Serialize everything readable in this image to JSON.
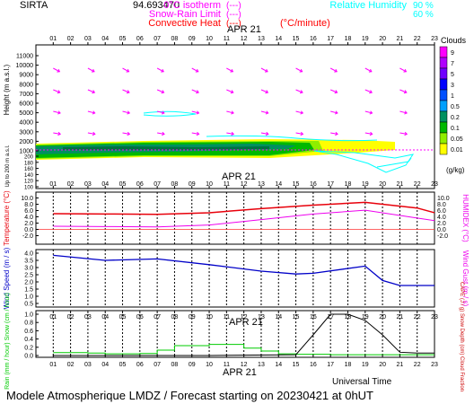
{
  "header": {
    "site": "SIRTA",
    "coords": "94.693470",
    "legend_left": [
      {
        "label": "0°C isotherm",
        "sample": "(---)",
        "color": "#ff00ff"
      },
      {
        "label": "Snow-Rain Limit",
        "sample": "(---)",
        "color": "#ff00ff"
      },
      {
        "label": "Convective Heat",
        "sample": "(---)",
        "suffix": "(°C/minute)",
        "color": "#ff0000"
      }
    ],
    "legend_right": [
      {
        "label": "Relative Humidity",
        "value": "90 %",
        "color": "#00ffff"
      },
      {
        "label": "",
        "value": "60 %",
        "color": "#00ffff"
      }
    ]
  },
  "footer": {
    "universal_time": "Universal Time",
    "model": "Modele Atmospherique LMDZ / Forecast starting on 20230421 at 0hUT"
  },
  "colors": {
    "magenta": "#ff00ff",
    "cyan": "#00ffff",
    "red": "#e8000b",
    "blue": "#0000c8",
    "green": "#00cc00",
    "black": "#000000"
  },
  "chart_data": [
    {
      "id": "clouds",
      "type": "heatmap",
      "date_label": "APR 21",
      "x_ticks": [
        "01",
        "02",
        "03",
        "04",
        "05",
        "06",
        "07",
        "08",
        "09",
        "10",
        "11",
        "12",
        "13",
        "14",
        "15",
        "16",
        "17",
        "18",
        "19",
        "20",
        "21",
        "22",
        "23"
      ],
      "ylabel": "Height (m a.s.l.)",
      "y_ticks_upper": [
        1000,
        2000,
        3000,
        4000,
        5000,
        6000,
        7000,
        8000,
        9000,
        10000,
        11000
      ],
      "ylabel_lower": "Up to 200 m a.s.l.",
      "y_ticks_lower": [
        100,
        120,
        140,
        160,
        180,
        200
      ],
      "colorbar_title": "Clouds",
      "colorbar_levels": [
        "9",
        "7",
        "5",
        "3",
        "1",
        "0.5",
        "0.2",
        "0.1",
        "0.05",
        "0.01"
      ],
      "colorbar_unit": "(g/kg)",
      "colorbar_colors": [
        "#ff00ff",
        "#b000ff",
        "#7000ff",
        "#0000ff",
        "#0050ff",
        "#00a0ff",
        "#009060",
        "#00b800",
        "#90ee00",
        "#ffff00"
      ]
    },
    {
      "id": "temperature",
      "type": "line",
      "date_label": "APR 21",
      "x_ticks": [
        "01",
        "02",
        "03",
        "04",
        "05",
        "06",
        "07",
        "08",
        "09",
        "10",
        "11",
        "12",
        "13",
        "14",
        "15",
        "16",
        "17",
        "18",
        "19",
        "20",
        "21",
        "22",
        "23"
      ],
      "ylabel": "Temperature (°C)",
      "y2label": "HUMIDEX (°C)",
      "y_ticks": [
        "10.0",
        "8.0",
        "6.0",
        "4.0",
        "2.0",
        "0.0",
        "-2.0"
      ],
      "ylim": [
        -3,
        11
      ],
      "series": [
        {
          "name": "Temperature",
          "color": "#e8000b",
          "x": [
            1,
            4,
            7,
            10,
            13,
            16,
            19,
            22,
            23
          ],
          "values": [
            5.0,
            4.9,
            4.8,
            5.3,
            6.6,
            7.7,
            8.6,
            6.8,
            5.3
          ]
        },
        {
          "name": "HUMIDEX",
          "color": "#ee00ee",
          "x": [
            1,
            4,
            7,
            10,
            13,
            16,
            19,
            22,
            23
          ],
          "values": [
            1.0,
            0.9,
            0.8,
            1.4,
            3.1,
            4.9,
            6.1,
            3.6,
            2.8
          ]
        }
      ]
    },
    {
      "id": "wind",
      "type": "line",
      "x_ticks": [
        "01",
        "02",
        "03",
        "04",
        "05",
        "06",
        "07",
        "08",
        "09",
        "10",
        "11",
        "12",
        "13",
        "14",
        "15",
        "16",
        "17",
        "18",
        "19",
        "20",
        "21",
        "22",
        "23"
      ],
      "ylabel": "Wind Speed (m / s)",
      "y2label": "Wind Gust (m / s)",
      "y_ticks": [
        "4.0",
        "3.5",
        "3.0",
        "2.5",
        "2.0",
        "1.5",
        "1.0",
        "0.5"
      ],
      "ylim": [
        0.5,
        4.0
      ],
      "series": [
        {
          "name": "Wind Speed",
          "color": "#0000c8",
          "x": [
            1,
            4,
            7,
            10,
            13,
            15,
            16,
            19,
            20,
            21,
            23
          ],
          "values": [
            3.85,
            3.5,
            3.6,
            3.2,
            2.75,
            2.55,
            2.6,
            3.1,
            2.1,
            1.75,
            1.75
          ]
        }
      ]
    },
    {
      "id": "precip",
      "type": "line",
      "date_label": "APR 21",
      "x_ticks": [
        "01",
        "02",
        "03",
        "04",
        "05",
        "06",
        "07",
        "08",
        "09",
        "10",
        "11",
        "12",
        "13",
        "14",
        "15",
        "16",
        "17",
        "18",
        "19",
        "20",
        "21",
        "22",
        "23"
      ],
      "ylabel": "Rain (mm / hour) Snow (cm / hour)",
      "y2label": "CAPE (J / g) Snow Depth (cm) Cloud Fraction",
      "y_ticks": [
        "1.0",
        "0.8",
        "0.6",
        "0.4",
        "0.2",
        "0.0"
      ],
      "ylim": [
        0,
        1.0
      ],
      "series": [
        {
          "name": "Rain",
          "color": "#00cc00",
          "step": true,
          "x": [
            1,
            2,
            3,
            4,
            5,
            6,
            7,
            8,
            9,
            10,
            11,
            12,
            13,
            14,
            15,
            16,
            17,
            18,
            19,
            20,
            21,
            22,
            23
          ],
          "values": [
            0.07,
            0.07,
            0.06,
            0.04,
            0.04,
            0.05,
            0.13,
            0.24,
            0.24,
            0.27,
            0.27,
            0.18,
            0.11,
            0.04,
            0.03,
            0.03,
            0.02,
            0.02,
            0.02,
            0.02,
            0.02,
            0.02,
            0.02
          ]
        },
        {
          "name": "Cloud Fraction",
          "color": "#000000",
          "x": [
            1,
            5,
            10,
            15,
            16,
            17,
            18,
            19,
            20,
            21,
            22,
            23
          ],
          "values": [
            0.0,
            0.0,
            0.0,
            0.02,
            0.5,
            1.0,
            1.0,
            0.85,
            0.5,
            0.08,
            0.06,
            0.06
          ]
        }
      ]
    }
  ]
}
